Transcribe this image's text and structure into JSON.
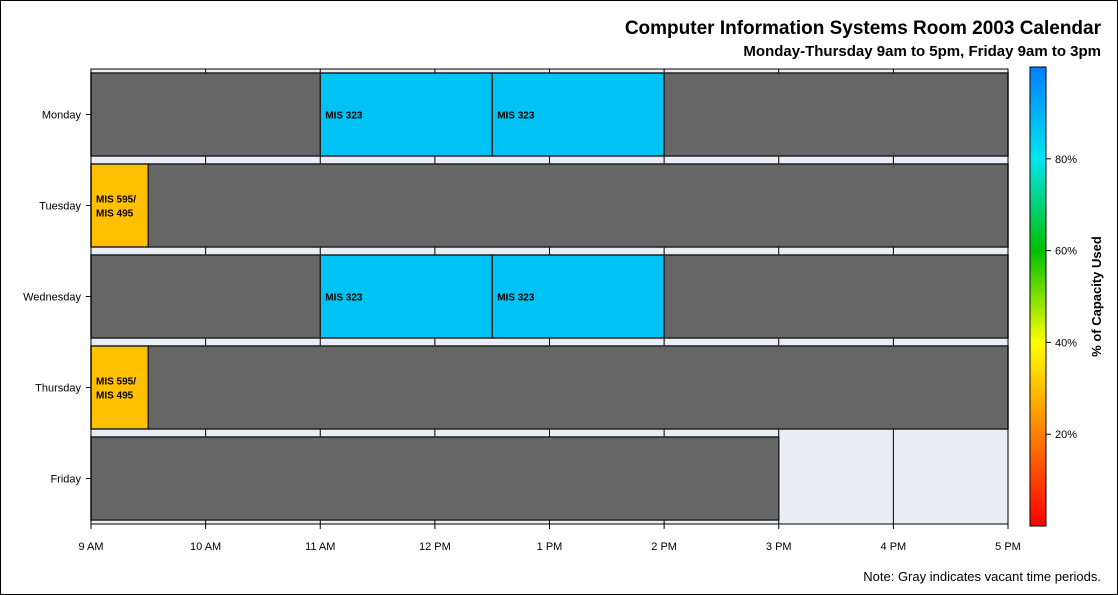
{
  "chart_data": {
    "type": "heatmap",
    "title": "Computer Information Systems Room 2003 Calendar",
    "subtitle": "Monday-Thursday 9am to 5pm, Friday 9am to 3pm",
    "note": "Note: Gray indicates vacant time periods.",
    "colorbar_label": "% of Capacity Used",
    "colorbar_ticks": [
      "20%",
      "40%",
      "60%",
      "80%"
    ],
    "colorbar_tick_values": [
      20,
      40,
      60,
      80
    ],
    "colorbar_range": [
      0,
      100
    ],
    "x_range": [
      9,
      17
    ],
    "x_ticks": [
      {
        "value": 9,
        "label": "9 AM"
      },
      {
        "value": 10,
        "label": "10 AM"
      },
      {
        "value": 11,
        "label": "11 AM"
      },
      {
        "value": 12,
        "label": "12 PM"
      },
      {
        "value": 13,
        "label": "1 PM"
      },
      {
        "value": 14,
        "label": "2 PM"
      },
      {
        "value": 15,
        "label": "3 PM"
      },
      {
        "value": 16,
        "label": "4 PM"
      },
      {
        "value": 17,
        "label": "5 PM"
      }
    ],
    "days": [
      {
        "name": "Monday",
        "blocks": [
          {
            "start": 9,
            "end": 11,
            "vacant": true
          },
          {
            "start": 11,
            "end": 12.5,
            "label": [
              "MIS 323"
            ],
            "capacity": 87
          },
          {
            "start": 12.5,
            "end": 14,
            "label": [
              "MIS 323"
            ],
            "capacity": 87
          },
          {
            "start": 14,
            "end": 17,
            "vacant": true
          }
        ]
      },
      {
        "name": "Tuesday",
        "blocks": [
          {
            "start": 9,
            "end": 9.5,
            "label": [
              "MIS 595/",
              "MIS 495"
            ],
            "capacity": 30
          },
          {
            "start": 9.5,
            "end": 17,
            "vacant": true
          }
        ]
      },
      {
        "name": "Wednesday",
        "blocks": [
          {
            "start": 9,
            "end": 11,
            "vacant": true
          },
          {
            "start": 11,
            "end": 12.5,
            "label": [
              "MIS 323"
            ],
            "capacity": 87
          },
          {
            "start": 12.5,
            "end": 14,
            "label": [
              "MIS 323"
            ],
            "capacity": 87
          },
          {
            "start": 14,
            "end": 17,
            "vacant": true
          }
        ]
      },
      {
        "name": "Thursday",
        "blocks": [
          {
            "start": 9,
            "end": 9.5,
            "label": [
              "MIS 595/",
              "MIS 495"
            ],
            "capacity": 30
          },
          {
            "start": 9.5,
            "end": 17,
            "vacant": true
          }
        ]
      },
      {
        "name": "Friday",
        "blocks": [
          {
            "start": 9,
            "end": 15,
            "vacant": true
          }
        ]
      }
    ],
    "colors": {
      "vacant": "#666666",
      "background": "#e9edf6",
      "frame": "#000000"
    },
    "color_ramp": [
      "#ff0000",
      "#ff8000",
      "#ffff00",
      "#00c000",
      "#00e5ee",
      "#0080ff"
    ]
  }
}
